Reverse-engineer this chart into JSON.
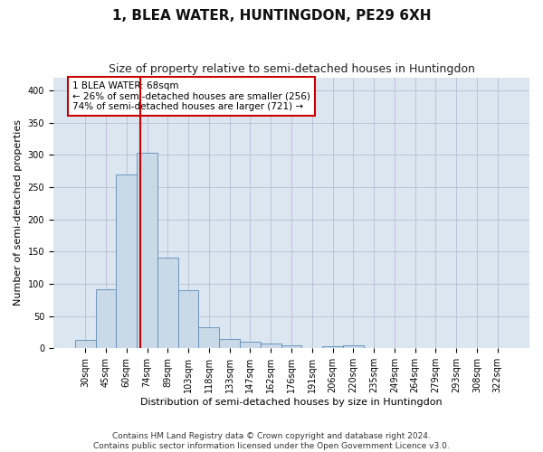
{
  "title": "1, BLEA WATER, HUNTINGDON, PE29 6XH",
  "subtitle": "Size of property relative to semi-detached houses in Huntingdon",
  "xlabel": "Distribution of semi-detached houses by size in Huntingdon",
  "ylabel": "Number of semi-detached properties",
  "footnote": "Contains HM Land Registry data © Crown copyright and database right 2024.\nContains public sector information licensed under the Open Government Licence v3.0.",
  "bar_labels": [
    "30sqm",
    "45sqm",
    "60sqm",
    "74sqm",
    "89sqm",
    "103sqm",
    "118sqm",
    "133sqm",
    "147sqm",
    "162sqm",
    "176sqm",
    "191sqm",
    "206sqm",
    "220sqm",
    "235sqm",
    "249sqm",
    "264sqm",
    "279sqm",
    "293sqm",
    "308sqm",
    "322sqm"
  ],
  "bar_values": [
    13,
    92,
    270,
    303,
    141,
    90,
    33,
    15,
    10,
    7,
    4,
    0,
    3,
    4,
    0,
    0,
    0,
    0,
    0,
    0,
    0
  ],
  "bar_color": "#c9d9e8",
  "bar_edge_color": "#5b8db8",
  "vline_x_index": 2.67,
  "vline_color": "#cc0000",
  "annotation_text": "1 BLEA WATER: 68sqm\n← 26% of semi-detached houses are smaller (256)\n74% of semi-detached houses are larger (721) →",
  "annotation_box_color": "#ffffff",
  "annotation_box_edge": "#cc0000",
  "ylim": [
    0,
    420
  ],
  "yticks": [
    0,
    50,
    100,
    150,
    200,
    250,
    300,
    350,
    400
  ],
  "title_fontsize": 11,
  "subtitle_fontsize": 9,
  "axis_fontsize": 8,
  "tick_fontsize": 7,
  "annotation_fontsize": 7.5,
  "footnote_fontsize": 6.5,
  "plot_bg_color": "#dce6f0",
  "bg_color": "#ffffff",
  "grid_color": "#b0b8c8"
}
